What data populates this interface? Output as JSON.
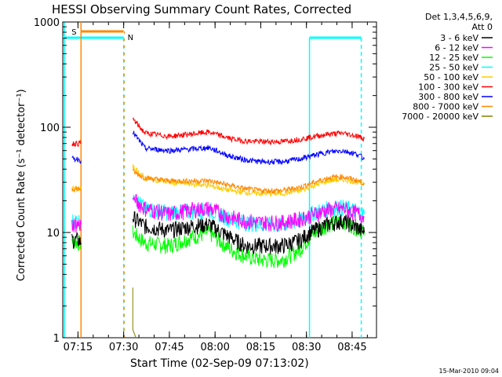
{
  "chart_data": {
    "type": "line",
    "title": "HESSI Observing Summary Count Rates, Corrected",
    "xlabel": "Start Time (02-Sep-09 07:13:02)",
    "ylabel": "Corrected Count Rate (s⁻¹ detector⁻¹)",
    "y_scale": "log",
    "ylim": [
      1,
      1000
    ],
    "x_unit": "minutes of day",
    "xlim": [
      "07:10",
      "08:53"
    ],
    "x_ticks": [
      "07:15",
      "07:30",
      "07:45",
      "08:00",
      "08:15",
      "08:30",
      "08:45"
    ],
    "y_ticks": [
      "1",
      "10",
      "100",
      "1000"
    ],
    "grid": false,
    "legend_position": "right",
    "legend_header": [
      "Det 1,3,4,5,6,9,",
      "Att 0"
    ],
    "series": [
      {
        "name": "3 - 6 keV",
        "color": "#000000",
        "x": [
          "07:13",
          "07:15",
          "07:16",
          "07:31",
          "07:33",
          "07:37",
          "07:45",
          "07:52",
          "07:58",
          "08:05",
          "08:10",
          "08:15",
          "08:22",
          "08:28",
          "08:31",
          "08:37",
          "08:42",
          "08:47",
          "08:49"
        ],
        "y": [
          8.5,
          8.5,
          8,
          null,
          14,
          11.5,
          10.5,
          11.5,
          12,
          9,
          7.5,
          7.5,
          7.5,
          8.5,
          10,
          12,
          13,
          11,
          10
        ]
      },
      {
        "name": "6 - 12 keV",
        "color": "#ff00ff",
        "x": [
          "07:13",
          "07:15",
          "07:16",
          "07:31",
          "07:33",
          "07:37",
          "07:45",
          "07:52",
          "07:58",
          "08:05",
          "08:10",
          "08:15",
          "08:22",
          "08:28",
          "08:31",
          "08:37",
          "08:42",
          "08:47",
          "08:49"
        ],
        "y": [
          12,
          12,
          12,
          null,
          21,
          17,
          15,
          16.5,
          17,
          14,
          13,
          12.5,
          12.5,
          13.5,
          14.5,
          16.5,
          17,
          15,
          14
        ]
      },
      {
        "name": "12 - 25 keV",
        "color": "#00ff00",
        "x": [
          "07:13",
          "07:15",
          "07:16",
          "07:31",
          "07:33",
          "07:37",
          "07:45",
          "07:52",
          "07:58",
          "08:05",
          "08:10",
          "08:15",
          "08:22",
          "08:28",
          "08:31",
          "08:37",
          "08:42",
          "08:47",
          "08:49"
        ],
        "y": [
          8.5,
          8,
          8,
          null,
          10,
          8,
          7.5,
          9,
          10,
          7,
          6,
          5.5,
          5.5,
          7,
          9,
          12,
          13,
          11,
          10
        ]
      },
      {
        "name": "25 - 50 keV",
        "color": "#00ffff",
        "x": [
          "07:13",
          "07:15",
          "07:16",
          "07:31",
          "07:33",
          "07:37",
          "07:45",
          "07:52",
          "07:58",
          "08:05",
          "08:10",
          "08:15",
          "08:22",
          "08:28",
          "08:31",
          "08:37",
          "08:42",
          "08:47",
          "08:49"
        ],
        "y": [
          13,
          13,
          13,
          null,
          22,
          17,
          15.5,
          16,
          16.5,
          13.5,
          12.5,
          12,
          12,
          13,
          15,
          17,
          17.5,
          16,
          15
        ]
      },
      {
        "name": "50 - 100 keV",
        "color": "#ffcc00",
        "x": [
          "07:13",
          "07:15",
          "07:16",
          "07:31",
          "07:33",
          "07:37",
          "07:45",
          "07:52",
          "07:58",
          "08:05",
          "08:10",
          "08:15",
          "08:22",
          "08:28",
          "08:31",
          "08:37",
          "08:42",
          "08:47",
          "08:49"
        ],
        "y": [
          26,
          26,
          26,
          null,
          42,
          33,
          30,
          29,
          28,
          25,
          24,
          23.5,
          23.5,
          25,
          27,
          31,
          32,
          30,
          29
        ]
      },
      {
        "name": "100 - 300 keV",
        "color": "#ff0000",
        "x": [
          "07:13",
          "07:15",
          "07:16",
          "07:31",
          "07:33",
          "07:37",
          "07:45",
          "07:52",
          "07:58",
          "08:05",
          "08:10",
          "08:15",
          "08:22",
          "08:28",
          "08:31",
          "08:37",
          "08:42",
          "08:47",
          "08:49"
        ],
        "y": [
          70,
          70,
          70,
          null,
          120,
          88,
          82,
          86,
          90,
          78,
          74,
          73,
          73,
          77,
          80,
          86,
          88,
          82,
          78
        ]
      },
      {
        "name": "300 - 800 keV",
        "color": "#0000ff",
        "x": [
          "07:13",
          "07:15",
          "07:16",
          "07:31",
          "07:33",
          "07:37",
          "07:45",
          "07:52",
          "07:58",
          "08:05",
          "08:10",
          "08:15",
          "08:22",
          "08:28",
          "08:31",
          "08:37",
          "08:42",
          "08:47",
          "08:49"
        ],
        "y": [
          50,
          50,
          48,
          null,
          90,
          63,
          60,
          62,
          64,
          53,
          49,
          47,
          47,
          50,
          53,
          58,
          60,
          55,
          50
        ]
      },
      {
        "name": "800 - 7000 keV",
        "color": "#ff8800",
        "x": [
          "07:13",
          "07:15",
          "07:16",
          "07:31",
          "07:33",
          "07:37",
          "07:45",
          "07:52",
          "07:58",
          "08:05",
          "08:10",
          "08:15",
          "08:22",
          "08:28",
          "08:31",
          "08:37",
          "08:42",
          "08:47",
          "08:49"
        ],
        "y": [
          26,
          26,
          26,
          null,
          38,
          33,
          31,
          31,
          31,
          28,
          26,
          25,
          25,
          27,
          29,
          33,
          34,
          31,
          29
        ]
      },
      {
        "name": "7000 - 20000 keV",
        "color": "#808000",
        "x": [
          "07:33",
          "07:33",
          "07:34"
        ],
        "y": [
          3,
          1.2,
          1
        ]
      }
    ],
    "annotations": [
      {
        "label": "S",
        "color": "#ff8800"
      },
      {
        "label": "N",
        "color": "#00ffff"
      }
    ]
  },
  "footer": {
    "timestamp": "15-Mar-2010 09:04"
  }
}
